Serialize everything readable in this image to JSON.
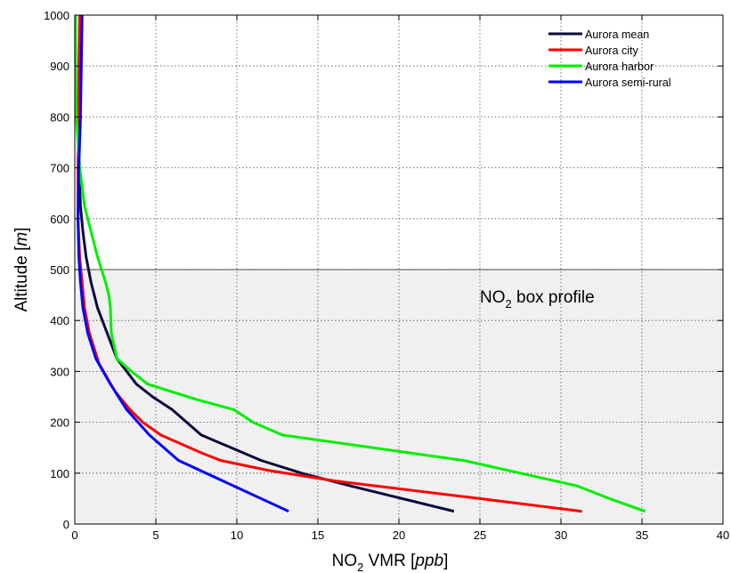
{
  "chart_data": {
    "type": "line",
    "title": "",
    "xlabel": {
      "main": "NO",
      "sub": "2",
      "rest": " VMR [",
      "unit": "ppb",
      "close": "]"
    },
    "ylabel": {
      "main": "Altitude [",
      "unit": "m",
      "close": "]"
    },
    "xlim": [
      0,
      40
    ],
    "ylim": [
      0,
      1000
    ],
    "xticks": [
      0,
      5,
      10,
      15,
      20,
      25,
      30,
      35,
      40
    ],
    "xtick_labels": [
      "0",
      "5",
      "10",
      "15",
      "20",
      "25",
      "30",
      "35",
      "40"
    ],
    "yticks": [
      0,
      100,
      200,
      300,
      400,
      500,
      600,
      700,
      800,
      900,
      1000
    ],
    "ytick_labels": [
      "0",
      "100",
      "200",
      "300",
      "400",
      "500",
      "600",
      "700",
      "800",
      "900",
      "1000"
    ],
    "grid": true,
    "legend_position": "top-right",
    "shaded_region": {
      "ymin": 0,
      "ymax": 500,
      "color": "#f0f0f0"
    },
    "annotation": {
      "main": "NO",
      "sub": "2",
      "rest": " box profile",
      "x": 25,
      "y": 435
    },
    "series": [
      {
        "name": "Aurora mean",
        "color": "#0a0a3c",
        "points": [
          [
            23.4,
            25
          ],
          [
            17.0,
            75
          ],
          [
            14.0,
            100
          ],
          [
            11.5,
            125
          ],
          [
            7.8,
            175
          ],
          [
            6.0,
            225
          ],
          [
            4.8,
            250
          ],
          [
            3.8,
            275
          ],
          [
            2.6,
            325
          ],
          [
            2.0,
            375
          ],
          [
            1.4,
            425
          ],
          [
            1.0,
            475
          ],
          [
            0.7,
            525
          ],
          [
            0.5,
            575
          ],
          [
            0.35,
            625
          ],
          [
            0.25,
            700
          ],
          [
            0.3,
            800
          ],
          [
            0.35,
            900
          ],
          [
            0.35,
            1000
          ]
        ]
      },
      {
        "name": "Aurora city",
        "color": "#ff0000",
        "points": [
          [
            31.3,
            25
          ],
          [
            25.0,
            50
          ],
          [
            16.0,
            85
          ],
          [
            12.0,
            105
          ],
          [
            9.0,
            125
          ],
          [
            7.8,
            140
          ],
          [
            5.3,
            175
          ],
          [
            4.2,
            200
          ],
          [
            3.4,
            225
          ],
          [
            2.5,
            260
          ],
          [
            1.5,
            315
          ],
          [
            0.9,
            375
          ],
          [
            0.6,
            425
          ],
          [
            0.45,
            475
          ],
          [
            0.3,
            525
          ],
          [
            0.2,
            600
          ],
          [
            0.2,
            700
          ],
          [
            0.25,
            800
          ],
          [
            0.25,
            900
          ],
          [
            0.3,
            1000
          ]
        ]
      },
      {
        "name": "Aurora harbor",
        "color": "#00ee00",
        "points": [
          [
            35.2,
            25
          ],
          [
            33.0,
            50
          ],
          [
            31.0,
            75
          ],
          [
            24.0,
            125
          ],
          [
            12.8,
            175
          ],
          [
            11.0,
            200
          ],
          [
            9.8,
            225
          ],
          [
            7.5,
            245
          ],
          [
            4.5,
            275
          ],
          [
            3.5,
            300
          ],
          [
            2.6,
            325
          ],
          [
            2.25,
            375
          ],
          [
            2.2,
            425
          ],
          [
            2.1,
            450
          ],
          [
            1.9,
            475
          ],
          [
            1.4,
            525
          ],
          [
            1.0,
            575
          ],
          [
            0.6,
            625
          ],
          [
            0.3,
            700
          ],
          [
            0.1,
            800
          ],
          [
            0.05,
            900
          ],
          [
            0.05,
            1000
          ]
        ]
      },
      {
        "name": "Aurora semi-rural",
        "color": "#0000ff",
        "points": [
          [
            13.2,
            25
          ],
          [
            9.8,
            75
          ],
          [
            6.4,
            125
          ],
          [
            4.6,
            175
          ],
          [
            3.2,
            225
          ],
          [
            2.2,
            275
          ],
          [
            1.3,
            325
          ],
          [
            0.8,
            375
          ],
          [
            0.5,
            425
          ],
          [
            0.35,
            475
          ],
          [
            0.25,
            525
          ],
          [
            0.2,
            600
          ],
          [
            0.25,
            700
          ],
          [
            0.35,
            800
          ],
          [
            0.4,
            900
          ],
          [
            0.45,
            1000
          ]
        ]
      }
    ]
  }
}
